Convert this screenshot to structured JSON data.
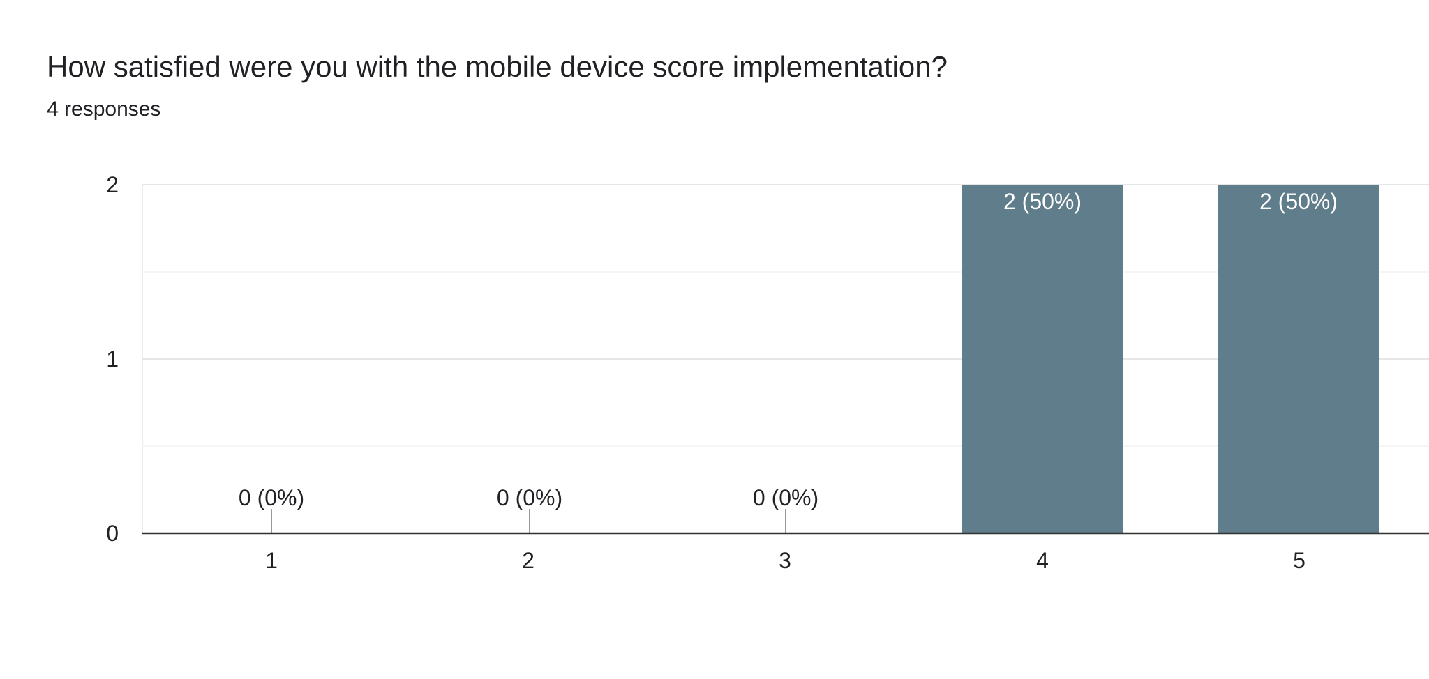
{
  "question": {
    "title": "How satisfied were you with the mobile device score implementation?",
    "responses_label": "4 responses"
  },
  "colors": {
    "bar": "#607d8b",
    "gridline": "#ebebeb",
    "baseline": "#333333",
    "label_inside": "#ffffff",
    "label_outside": "#202124",
    "tick_text": "#202124"
  },
  "chart_data": {
    "type": "bar",
    "title": "",
    "xlabel": "",
    "ylabel": "",
    "categories": [
      "1",
      "2",
      "3",
      "4",
      "5"
    ],
    "values": [
      0,
      0,
      0,
      2,
      2
    ],
    "data_labels": [
      "0 (0%)",
      "0 (0%)",
      "0 (0%)",
      "2 (50%)",
      "2 (50%)"
    ],
    "ylim": [
      0,
      2
    ],
    "yticks": [
      "0",
      "1",
      "2"
    ],
    "grid": true,
    "legend": "none"
  }
}
